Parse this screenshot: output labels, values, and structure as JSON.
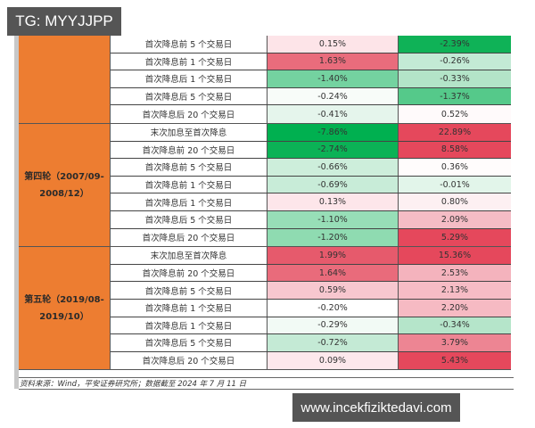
{
  "watermarks": {
    "top_left": "TG: MYYJJPP",
    "bottom_right": "www.incekfiziktedavi.com"
  },
  "colors": {
    "group_label_bg": "#ed7d31",
    "strong_green": "#00b050",
    "strong_red": "#e5485c"
  },
  "table": {
    "groups": [
      {
        "label": "",
        "rows": [
          {
            "label": "首次降息前 5 个交易日",
            "v1": "0.15%",
            "v2": "-2.39%",
            "c1": "#fde4e8",
            "c2": "#0fb257"
          },
          {
            "label": "首次降息前 1 个交易日",
            "v1": "1.63%",
            "v2": "-0.26%",
            "c1": "#e96c7c",
            "c2": "#c3ead5"
          },
          {
            "label": "首次降息后 1 个交易日",
            "v1": "-1.40%",
            "v2": "-0.33%",
            "c1": "#74d2a0",
            "c2": "#b3e4c8"
          },
          {
            "label": "首次降息后 5 个交易日",
            "v1": "-0.24%",
            "v2": "-1.37%",
            "c1": "#f8fcf9",
            "c2": "#55c98a"
          },
          {
            "label": "首次降息后 20 个交易日",
            "v1": "-0.41%",
            "v2": "0.52%",
            "c1": "#e5f5ec",
            "c2": "#fffafb"
          }
        ]
      },
      {
        "label": "第四轮（2007/09-2008/12）",
        "rows": [
          {
            "label": "末次加息至首次降息",
            "v1": "-7.86%",
            "v2": "22.89%",
            "c1": "#00b050",
            "c2": "#e5485c"
          },
          {
            "label": "首次降息前 20 个交易日",
            "v1": "-2.74%",
            "v2": "8.58%",
            "c1": "#0bb256",
            "c2": "#e5485c"
          },
          {
            "label": "首次降息前 5 个交易日",
            "v1": "-0.66%",
            "v2": "0.36%",
            "c1": "#cdeedb",
            "c2": "#fffcfc"
          },
          {
            "label": "首次降息前 1 个交易日",
            "v1": "-0.69%",
            "v2": "-0.01%",
            "c1": "#c8ecd8",
            "c2": "#e2f5ea"
          },
          {
            "label": "首次降息后 1 个交易日",
            "v1": "0.13%",
            "v2": "0.80%",
            "c1": "#fde6ea",
            "c2": "#fdf0f2"
          },
          {
            "label": "首次降息后 5 个交易日",
            "v1": "-1.10%",
            "v2": "2.09%",
            "c1": "#97deb7",
            "c2": "#f5bcc5"
          },
          {
            "label": "首次降息后 20 个交易日",
            "v1": "-1.20%",
            "v2": "5.29%",
            "c1": "#8fdbb1",
            "c2": "#e5485c"
          }
        ]
      },
      {
        "label": "第五轮（2019/08-2019/10）",
        "rows": [
          {
            "label": "末次加息至首次降息",
            "v1": "1.99%",
            "v2": "15.36%",
            "c1": "#e65a6c",
            "c2": "#e5485c"
          },
          {
            "label": "首次降息前 20 个交易日",
            "v1": "1.64%",
            "v2": "2.53%",
            "c1": "#e96b7b",
            "c2": "#f4b3bd"
          },
          {
            "label": "首次降息前 5 个交易日",
            "v1": "0.59%",
            "v2": "2.13%",
            "c1": "#f7c7cf",
            "c2": "#f6bcc5"
          },
          {
            "label": "首次降息前 1 个交易日",
            "v1": "-0.20%",
            "v2": "2.20%",
            "c1": "#ffffff",
            "c2": "#f6bac3"
          },
          {
            "label": "首次降息后 1 个交易日",
            "v1": "-0.29%",
            "v2": "-0.34%",
            "c1": "#f2faf5",
            "c2": "#b5e5ca"
          },
          {
            "label": "首次降息后 5 个交易日",
            "v1": "-0.72%",
            "v2": "3.79%",
            "c1": "#c4ead5",
            "c2": "#ed8593"
          },
          {
            "label": "首次降息后 20 个交易日",
            "v1": "0.09%",
            "v2": "5.43%",
            "c1": "#fde8ec",
            "c2": "#e5485c"
          }
        ]
      }
    ]
  },
  "footer": {
    "source": "资料来源：Wind，平安证券研究所；数据截至 2024 年 7 月 11 日"
  }
}
